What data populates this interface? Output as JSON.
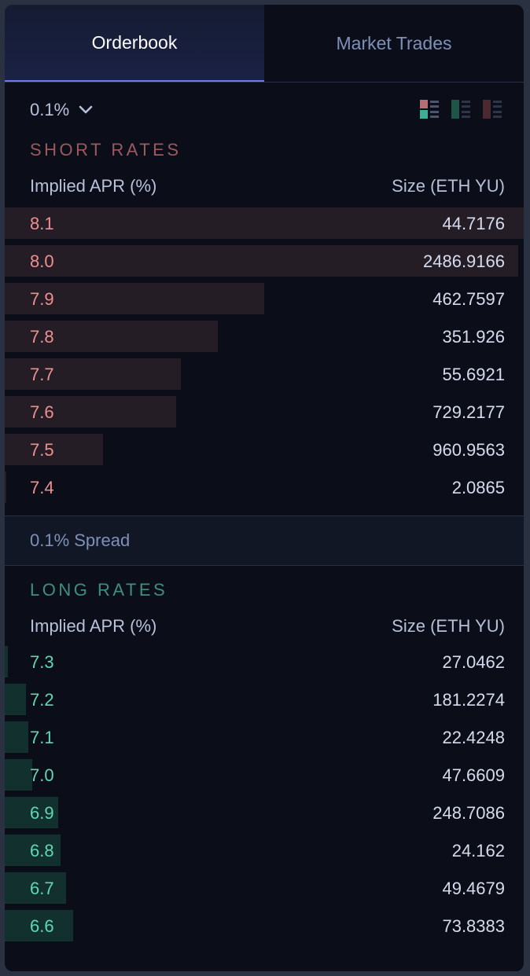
{
  "tabs": {
    "orderbook": "Orderbook",
    "market_trades": "Market Trades"
  },
  "controls": {
    "precision": "0.1%",
    "view_icons": [
      "both-view-icon",
      "buy-only-view-icon",
      "sell-only-view-icon"
    ]
  },
  "short": {
    "title": "SHORT RATES",
    "col_rate": "Implied APR (%)",
    "col_size": "Size (ETH YU)",
    "rows": [
      {
        "rate": "8.1",
        "size": "44.7176",
        "depth": 1.0
      },
      {
        "rate": "8.0",
        "size": "2486.9166",
        "depth": 0.99
      },
      {
        "rate": "7.9",
        "size": "462.7597",
        "depth": 0.5
      },
      {
        "rate": "7.8",
        "size": "351.926",
        "depth": 0.41
      },
      {
        "rate": "7.7",
        "size": "55.6921",
        "depth": 0.34
      },
      {
        "rate": "7.6",
        "size": "729.2177",
        "depth": 0.33
      },
      {
        "rate": "7.5",
        "size": "960.9563",
        "depth": 0.19
      },
      {
        "rate": "7.4",
        "size": "2.0865",
        "depth": 0.003
      }
    ]
  },
  "spread": {
    "label": "0.1% Spread"
  },
  "long": {
    "title": "LONG RATES",
    "col_rate": "Implied APR (%)",
    "col_size": "Size (ETH YU)",
    "rows": [
      {
        "rate": "7.3",
        "size": "27.0462",
        "depth": 0.006
      },
      {
        "rate": "7.2",
        "size": "181.2274",
        "depth": 0.041
      },
      {
        "rate": "7.1",
        "size": "22.4248",
        "depth": 0.046
      },
      {
        "rate": "7.0",
        "size": "47.6609",
        "depth": 0.053
      },
      {
        "rate": "6.9",
        "size": "248.7086",
        "depth": 0.103
      },
      {
        "rate": "6.8",
        "size": "24.162",
        "depth": 0.108
      },
      {
        "rate": "6.7",
        "size": "49.4679",
        "depth": 0.118
      },
      {
        "rate": "6.6",
        "size": "73.8383",
        "depth": 0.132
      }
    ]
  },
  "colors": {
    "short_rate": "#ef8f8f",
    "long_rate": "#5fd8b4",
    "accent_tab": "#6a7ae8"
  }
}
